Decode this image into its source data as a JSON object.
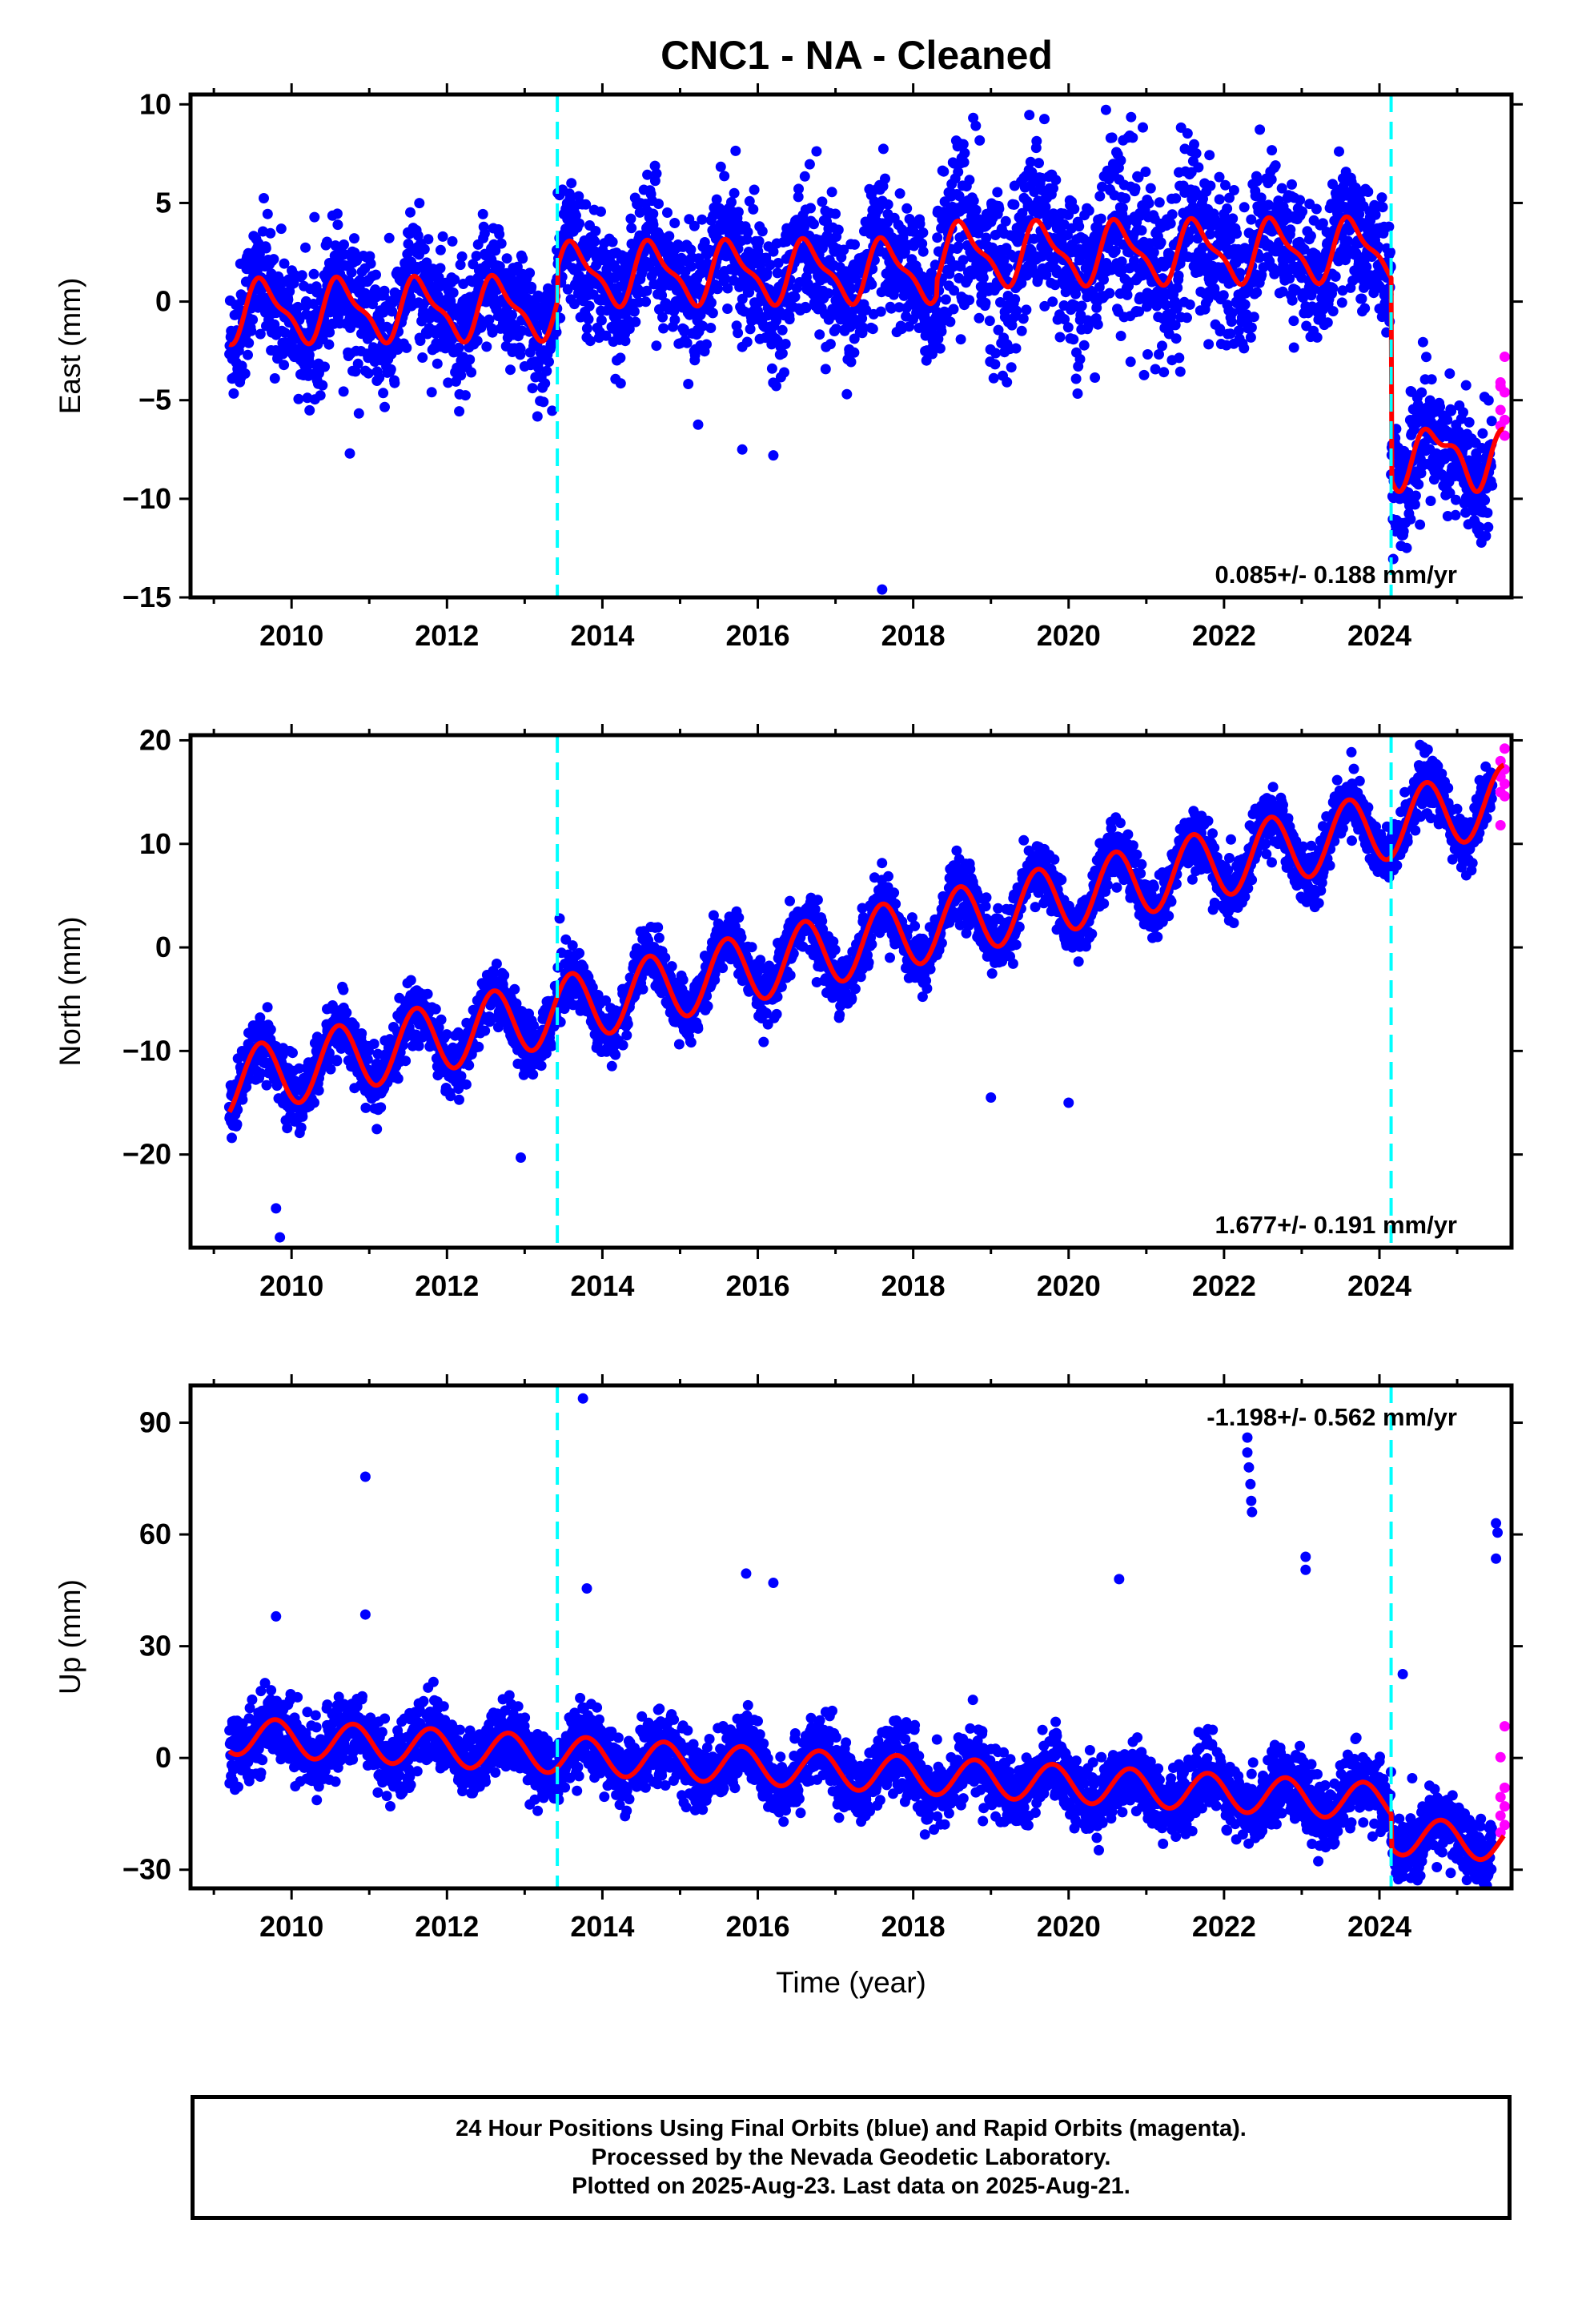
{
  "title": "CNC1  - NA - Cleaned",
  "caption": {
    "line1": "24 Hour Positions Using Final Orbits (blue) and Rapid Orbits (magenta).",
    "line2": "Processed by the Nevada Geodetic Laboratory.",
    "line3": "Plotted on 2025-Aug-23. Last data on 2025-Aug-21."
  },
  "colors": {
    "final_orbits": "#0000ff",
    "rapid_orbits": "#ff00ff",
    "model_fit": "#ff0000",
    "event_lines": "#00ffff"
  },
  "chart_data": [
    {
      "type": "scatter",
      "component": "east",
      "ylabel": "East (mm)",
      "xlabel": "",
      "xlim": [
        2008.7,
        2025.7
      ],
      "ylim": [
        -15,
        10.5
      ],
      "xticks": [
        2010,
        2012,
        2014,
        2016,
        2018,
        2020,
        2022,
        2024
      ],
      "yticks": [
        -15,
        -10,
        -5,
        0,
        5,
        10
      ],
      "event_lines": [
        2013.42,
        2024.15
      ],
      "rate_label": "0.085+/- 0.188 mm/yr",
      "rate_position": "bottom-right",
      "model": {
        "offset_before_2013": -0.5,
        "offset_2013": 1.2,
        "trend_per_yr": 0.085,
        "annual_amplitude": 1.6,
        "step_2024": -9.0,
        "mean_after_2024": -7.8
      },
      "series": [
        {
          "name": "Final Orbits",
          "color_key": "final_orbits",
          "x_range": [
            2009.2,
            2025.45
          ],
          "scatter_sd": 1.6
        },
        {
          "name": "Rapid Orbits",
          "color_key": "rapid_orbits",
          "x_range": [
            2025.45,
            2025.63
          ],
          "y": [
            -2.8,
            -4.1,
            -4.6,
            -5.5,
            -6.0,
            -6.3,
            -6.8,
            -4.3
          ]
        }
      ],
      "outliers": [
        {
          "x": 2017.6,
          "y": -14.6
        },
        {
          "x": 2010.75,
          "y": -7.7
        },
        {
          "x": 2015.8,
          "y": -7.5
        },
        {
          "x": 2016.2,
          "y": -7.8
        }
      ]
    },
    {
      "type": "scatter",
      "component": "north",
      "ylabel": "North (mm)",
      "xlabel": "",
      "xlim": [
        2008.7,
        2025.7
      ],
      "ylim": [
        -29,
        20.5
      ],
      "xticks": [
        2010,
        2012,
        2014,
        2016,
        2018,
        2020,
        2022,
        2024
      ],
      "yticks": [
        -20,
        -10,
        0,
        10,
        20
      ],
      "event_lines": [
        2013.42,
        2024.15
      ],
      "rate_label": "1.677+/- 0.191 mm/yr",
      "rate_position": "bottom-right",
      "model": {
        "start_value": -13.2,
        "trend_per_yr": 1.677,
        "annual_amplitude": 3.3
      },
      "series": [
        {
          "name": "Final Orbits",
          "color_key": "final_orbits",
          "x_range": [
            2009.2,
            2025.45
          ],
          "scatter_sd": 1.4
        },
        {
          "name": "Rapid Orbits",
          "color_key": "rapid_orbits",
          "x_range": [
            2025.45,
            2025.63
          ],
          "y": [
            19.2,
            18.0,
            17.2,
            16.5,
            15.8,
            15.0,
            14.6,
            11.8
          ]
        }
      ],
      "outliers": [
        {
          "x": 2009.85,
          "y": -28.0
        },
        {
          "x": 2009.8,
          "y": -25.2
        },
        {
          "x": 2012.95,
          "y": -20.3
        },
        {
          "x": 2019.0,
          "y": -14.5
        },
        {
          "x": 2020.0,
          "y": -15.0
        },
        {
          "x": 2013.45,
          "y": 2.8
        }
      ]
    },
    {
      "type": "scatter",
      "component": "up",
      "ylabel": "Up (mm)",
      "xlabel": "Time (year)",
      "xlim": [
        2008.7,
        2025.7
      ],
      "ylim": [
        -35,
        100
      ],
      "xticks": [
        2010,
        2012,
        2014,
        2016,
        2018,
        2020,
        2022,
        2024
      ],
      "yticks": [
        -30,
        0,
        30,
        60,
        90
      ],
      "event_lines": [
        2013.42,
        2024.15
      ],
      "rate_label": "-1.198+/- 0.562 mm/yr",
      "rate_position": "top-right",
      "model": {
        "start_value": 6.0,
        "trend_per_yr": -1.198,
        "annual_amplitude": 5.0,
        "step_2024": -9.0
      },
      "series": [
        {
          "name": "Final Orbits",
          "color_key": "final_orbits",
          "x_range": [
            2009.2,
            2025.45
          ],
          "scatter_sd": 4.5
        },
        {
          "name": "Rapid Orbits",
          "color_key": "rapid_orbits",
          "x_range": [
            2025.45,
            2025.63
          ],
          "y": [
            8.5,
            0.2,
            -8.0,
            -10.5,
            -13.0,
            -15.5,
            -18.0,
            -20.0
          ]
        }
      ],
      "outliers": [
        {
          "x": 2013.75,
          "y": 96.5
        },
        {
          "x": 2010.95,
          "y": 75.5
        },
        {
          "x": 2022.3,
          "y": 86.0
        },
        {
          "x": 2022.3,
          "y": 82.0
        },
        {
          "x": 2022.32,
          "y": 78.0
        },
        {
          "x": 2022.34,
          "y": 73.5
        },
        {
          "x": 2022.35,
          "y": 69.0
        },
        {
          "x": 2022.36,
          "y": 66.0
        },
        {
          "x": 2025.5,
          "y": 63.0
        },
        {
          "x": 2025.52,
          "y": 60.5
        },
        {
          "x": 2025.5,
          "y": 53.5
        },
        {
          "x": 2023.05,
          "y": 54.0
        },
        {
          "x": 2023.05,
          "y": 50.5
        },
        {
          "x": 2015.85,
          "y": 49.5
        },
        {
          "x": 2016.2,
          "y": 47.0
        },
        {
          "x": 2020.65,
          "y": 48.0
        },
        {
          "x": 2013.8,
          "y": 45.5
        },
        {
          "x": 2009.8,
          "y": 38.0
        },
        {
          "x": 2010.95,
          "y": 38.5
        },
        {
          "x": 2024.3,
          "y": 22.5
        }
      ]
    }
  ]
}
